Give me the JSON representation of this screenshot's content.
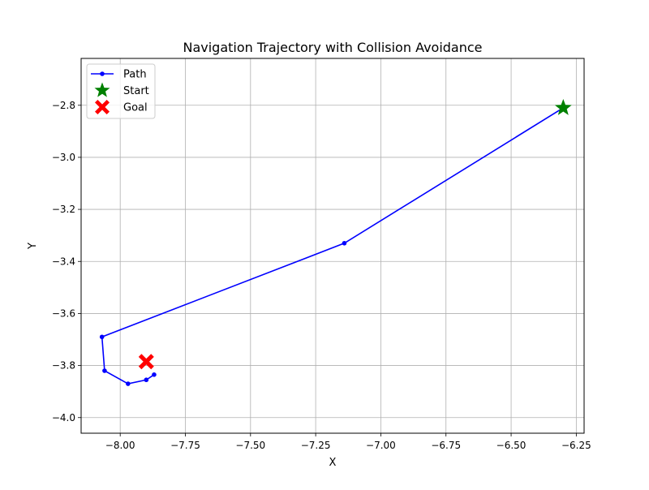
{
  "chart_data": {
    "type": "line",
    "title": "Navigation Trajectory with Collision Avoidance",
    "xlabel": "X",
    "ylabel": "Y",
    "xlim": [
      -8.15,
      -6.22
    ],
    "ylim": [
      -4.06,
      -2.62
    ],
    "grid": true,
    "legend_position": "top-left",
    "xticks": [
      -8.0,
      -7.75,
      -7.5,
      -7.25,
      -7.0,
      -6.75,
      -6.5,
      -6.25
    ],
    "xtick_labels": [
      "−8.00",
      "−7.75",
      "−7.50",
      "−7.25",
      "−7.00",
      "−6.75",
      "−6.50",
      "−6.25"
    ],
    "yticks": [
      -4.0,
      -3.8,
      -3.6,
      -3.4,
      -3.2,
      -3.0,
      -2.8
    ],
    "ytick_labels": [
      "−4.0",
      "−3.8",
      "−3.6",
      "−3.4",
      "−3.2",
      "−3.0",
      "−2.8"
    ],
    "series": [
      {
        "name": "Path",
        "color": "#0000ff",
        "marker": "circle",
        "points": [
          [
            -6.3,
            -2.81
          ],
          [
            -7.14,
            -3.33
          ],
          [
            -8.07,
            -3.69
          ],
          [
            -8.06,
            -3.82
          ],
          [
            -7.97,
            -3.87
          ],
          [
            -7.9,
            -3.855
          ],
          [
            -7.87,
            -3.835
          ]
        ]
      }
    ],
    "markers": [
      {
        "name": "Start",
        "x": -6.3,
        "y": -2.81,
        "shape": "star",
        "color": "#008000"
      },
      {
        "name": "Goal",
        "x": -7.9,
        "y": -3.785,
        "shape": "x-filled",
        "color": "#ff0000"
      }
    ]
  }
}
